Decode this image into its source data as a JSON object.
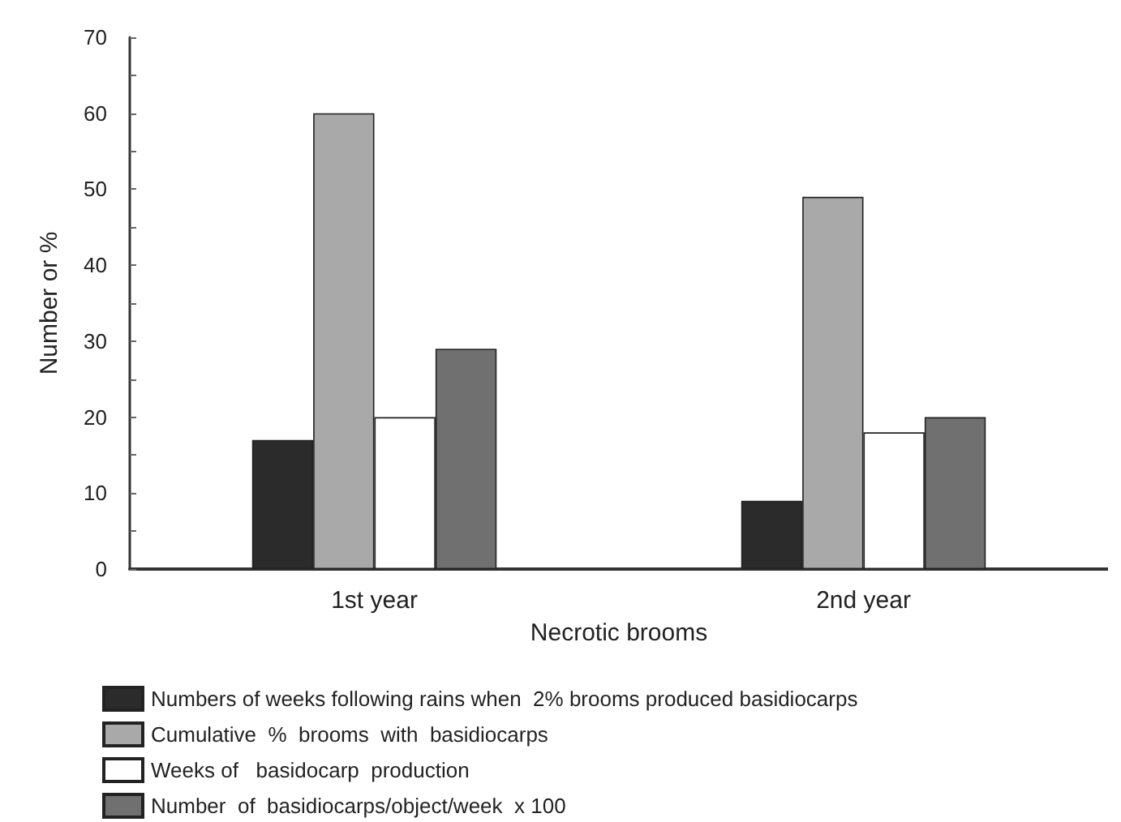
{
  "chart_data": {
    "type": "bar",
    "xlabel": "Necrotic brooms",
    "ylabel": "Number or %",
    "categories": [
      "1st year",
      "2nd year"
    ],
    "series": [
      {
        "name": "Numbers of weeks following rains when  2% brooms produced basidiocarps",
        "color": "#2b2b2b",
        "values": [
          17,
          9
        ]
      },
      {
        "name": "Cumulative  %  brooms  with  basidiocarps",
        "color": "#a9a9a9",
        "values": [
          60,
          49
        ]
      },
      {
        "name": "Weeks of   basidocarp  production",
        "color": "#ffffff",
        "values": [
          20,
          18
        ]
      },
      {
        "name": "Number  of  basidiocarps/object/week  x 100",
        "color": "#707070",
        "values": [
          29,
          20
        ]
      }
    ],
    "ylim": [
      0,
      70
    ],
    "yticks": [
      0,
      {
        "value": 5,
        "label": null
      },
      10,
      {
        "value": 15,
        "label": null
      },
      20,
      {
        "value": 25,
        "label": null
      },
      30,
      {
        "value": 35,
        "label": null
      },
      40,
      {
        "value": 45,
        "label": null
      },
      50,
      {
        "value": 55,
        "label": null
      },
      60,
      {
        "value": 65,
        "label": null
      },
      70
    ],
    "grid": false,
    "legend": "bottom"
  }
}
